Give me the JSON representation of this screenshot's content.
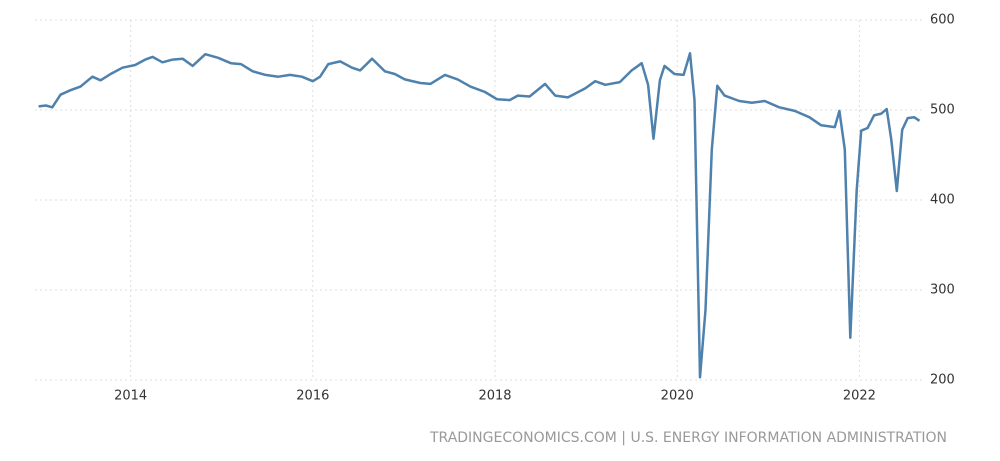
{
  "chart_data": {
    "type": "line",
    "source": "TRADINGECONOMICS.COM | U.S. ENERGY INFORMATION ADMINISTRATION",
    "x": [
      2012.99,
      2013.07,
      2013.14,
      2013.23,
      2013.34,
      2013.45,
      2013.58,
      2013.67,
      2013.78,
      2013.91,
      2014.05,
      2014.16,
      2014.24,
      2014.35,
      2014.46,
      2014.57,
      2014.68,
      2014.82,
      2014.96,
      2015.1,
      2015.21,
      2015.34,
      2015.48,
      2015.62,
      2015.75,
      2015.88,
      2016.0,
      2016.08,
      2016.17,
      2016.3,
      2016.43,
      2016.52,
      2016.65,
      2016.79,
      2016.9,
      2017.01,
      2017.18,
      2017.29,
      2017.45,
      2017.59,
      2017.73,
      2017.89,
      2018.02,
      2018.16,
      2018.25,
      2018.38,
      2018.55,
      2018.66,
      2018.8,
      2018.99,
      2019.1,
      2019.21,
      2019.37,
      2019.5,
      2019.61,
      2019.68,
      2019.74,
      2019.81,
      2019.86,
      2019.97,
      2020.07,
      2020.14,
      2020.19,
      2020.25,
      2020.31,
      2020.38,
      2020.44,
      2020.52,
      2020.68,
      2020.82,
      2020.96,
      2021.12,
      2021.29,
      2021.45,
      2021.58,
      2021.73,
      2021.78,
      2021.84,
      2021.9,
      2021.97,
      2022.02,
      2022.09,
      2022.16,
      2022.24,
      2022.3,
      2022.35,
      2022.41,
      2022.47,
      2022.53,
      2022.6,
      2022.66
    ],
    "series": [
      {
        "color": "#4f81ad",
        "values": [
          504,
          505,
          503,
          517,
          522,
          526,
          537,
          533,
          540,
          547,
          550,
          556,
          559,
          553,
          556,
          557,
          549,
          562,
          558,
          552,
          551,
          543,
          539,
          537,
          539,
          537,
          532,
          537,
          551,
          554,
          547,
          544,
          557,
          543,
          540,
          534,
          530,
          529,
          539,
          534,
          526,
          520,
          512,
          511,
          516,
          515,
          529,
          516,
          514,
          524,
          532,
          528,
          531,
          544,
          552,
          528,
          468,
          533,
          549,
          540,
          539,
          563,
          511,
          203,
          278,
          456,
          527,
          516,
          510,
          508,
          510,
          503,
          499,
          492,
          483,
          481,
          499,
          456,
          247,
          411,
          477,
          480,
          494,
          496,
          501,
          467,
          410,
          478,
          491,
          492,
          488
        ]
      }
    ],
    "xlim": [
      2012.95,
      2022.72
    ],
    "xticks": [
      2014,
      2016,
      2018,
      2020,
      2022
    ],
    "ylim": [
      200,
      600
    ],
    "yticks": [
      200,
      300,
      400,
      500,
      600
    ],
    "grid": true
  }
}
